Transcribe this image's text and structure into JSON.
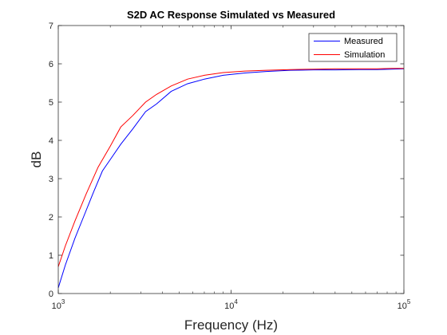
{
  "chart_data": {
    "type": "line",
    "title": "S2D AC Response Simulated vs Measured",
    "xlabel": "Frequency (Hz)",
    "ylabel": "dB",
    "xscale": "log",
    "xlim": [
      1000,
      100000
    ],
    "ylim": [
      0,
      7
    ],
    "x_ticks": [
      {
        "value": 1000,
        "base": "10",
        "exp": "3"
      },
      {
        "value": 10000,
        "base": "10",
        "exp": "4"
      },
      {
        "value": 100000,
        "base": "10",
        "exp": "5"
      }
    ],
    "y_ticks": [
      0,
      1,
      2,
      3,
      4,
      5,
      6,
      7
    ],
    "grid": false,
    "legend_position": "top-right",
    "series": [
      {
        "name": "Measured",
        "color": "#0000ff",
        "x": [
          1000,
          1100,
          1250,
          1400,
          1600,
          1800,
          2000,
          2300,
          2700,
          3200,
          3700,
          4500,
          5600,
          7000,
          9000,
          12000,
          16000,
          22000,
          30000,
          40000,
          55000,
          70000,
          85000,
          100000
        ],
        "y": [
          0.15,
          0.75,
          1.45,
          2.0,
          2.65,
          3.2,
          3.5,
          3.9,
          4.3,
          4.75,
          4.95,
          5.28,
          5.48,
          5.6,
          5.7,
          5.76,
          5.8,
          5.83,
          5.84,
          5.84,
          5.85,
          5.85,
          5.86,
          5.87
        ]
      },
      {
        "name": "Simulation",
        "color": "#ff0000",
        "x": [
          1000,
          1100,
          1250,
          1450,
          1700,
          2000,
          2300,
          2700,
          3200,
          3700,
          4500,
          5600,
          7000,
          9000,
          12000,
          16000,
          22000,
          30000,
          40000,
          55000,
          70000,
          85000,
          100000
        ],
        "y": [
          0.7,
          1.25,
          1.9,
          2.6,
          3.3,
          3.85,
          4.35,
          4.65,
          5.0,
          5.2,
          5.42,
          5.6,
          5.7,
          5.77,
          5.81,
          5.83,
          5.85,
          5.86,
          5.87,
          5.87,
          5.87,
          5.88,
          5.88
        ]
      }
    ]
  }
}
